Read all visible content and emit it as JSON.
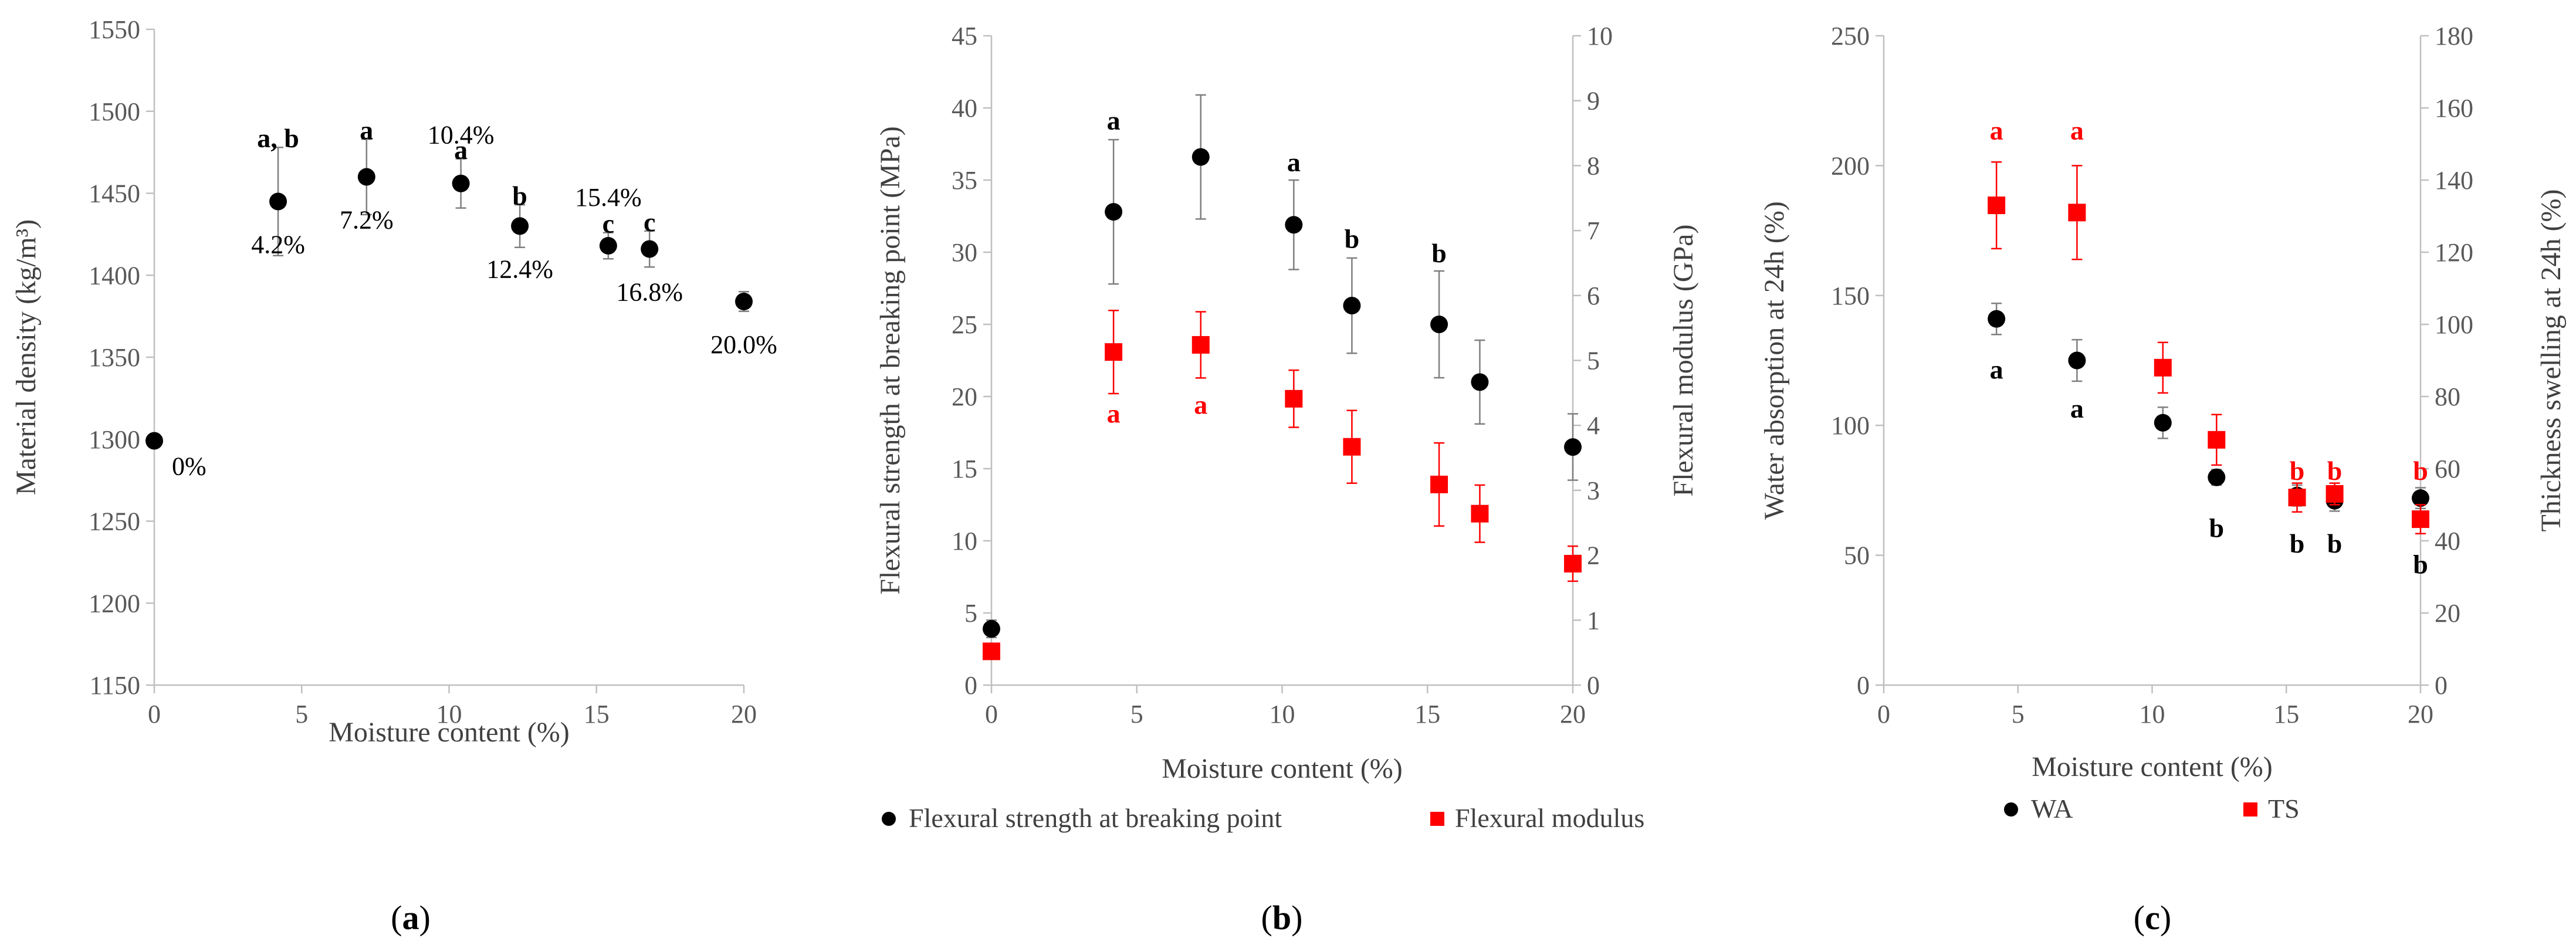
{
  "colors": {
    "black": "#000000",
    "red": "#ff0000",
    "axis": "#bfbfbf",
    "text": "#595959"
  },
  "chart_data": [
    {
      "type": "scatter",
      "panel": "(a)",
      "panel_parts": [
        "(",
        "a",
        ")"
      ],
      "xlabel": "Moisture content (%)",
      "ylabel": "Material density (kg/m³)",
      "xlim": [
        0,
        20
      ],
      "ylim": [
        1150,
        1550
      ],
      "xticks": [
        0,
        5,
        10,
        15,
        20
      ],
      "yticks": [
        1150,
        1200,
        1250,
        1300,
        1350,
        1400,
        1450,
        1500,
        1550
      ],
      "series": [
        {
          "name": "Material density",
          "color": "#000000",
          "marker": "circle",
          "points": [
            {
              "x": 0,
              "y": 1299,
              "err": 0
            },
            {
              "x": 4.2,
              "y": 1445,
              "err": 33
            },
            {
              "x": 7.2,
              "y": 1460,
              "err": 23
            },
            {
              "x": 10.4,
              "y": 1456,
              "err": 15
            },
            {
              "x": 12.4,
              "y": 1430,
              "err": 13
            },
            {
              "x": 15.4,
              "y": 1418,
              "err": 8
            },
            {
              "x": 16.8,
              "y": 1416,
              "err": 11
            },
            {
              "x": 20.0,
              "y": 1384,
              "err": 6
            }
          ]
        }
      ],
      "annotations": [
        {
          "text": "0%",
          "x": 0,
          "y": 1299,
          "pos": "lower-right"
        },
        {
          "text": "4.2%",
          "x": 4.2,
          "y": 1445,
          "pos": "below"
        },
        {
          "text": "7.2%",
          "x": 7.2,
          "y": 1460,
          "pos": "below"
        },
        {
          "text": "10.4%",
          "x": 10.4,
          "y": 1456,
          "pos": "above"
        },
        {
          "text": "12.4%",
          "x": 12.4,
          "y": 1430,
          "pos": "below"
        },
        {
          "text": "15.4%",
          "x": 15.4,
          "y": 1418,
          "pos": "above"
        },
        {
          "text": "16.8%",
          "x": 16.8,
          "y": 1416,
          "pos": "below"
        },
        {
          "text": "20.0%",
          "x": 20.0,
          "y": 1384,
          "pos": "below"
        }
      ],
      "letters": [
        {
          "text": "a, b",
          "x": 4.2,
          "y": 1478,
          "color": "#000000"
        },
        {
          "text": "a",
          "x": 7.2,
          "y": 1483,
          "color": "#000000"
        },
        {
          "text": "a",
          "x": 10.4,
          "y": 1471,
          "color": "#000000"
        },
        {
          "text": "b",
          "x": 12.4,
          "y": 1443,
          "color": "#000000"
        },
        {
          "text": "c",
          "x": 15.4,
          "y": 1426,
          "color": "#000000"
        },
        {
          "text": "c",
          "x": 16.8,
          "y": 1427,
          "color": "#000000"
        }
      ]
    },
    {
      "type": "scatter",
      "panel": "(b)",
      "panel_parts": [
        "(",
        "b",
        ")"
      ],
      "xlabel": "Moisture content (%)",
      "ylabel": "Flexural strength at breaking point (MPa)",
      "y2label": "Flexural modulus (GPa)",
      "xlim": [
        0,
        20
      ],
      "ylim": [
        0,
        45
      ],
      "y2lim": [
        0,
        10
      ],
      "xticks": [
        0,
        5,
        10,
        15,
        20
      ],
      "yticks": [
        0,
        5,
        10,
        15,
        20,
        25,
        30,
        35,
        40,
        45
      ],
      "y2ticks": [
        0,
        1,
        2,
        3,
        4,
        5,
        6,
        7,
        8,
        9,
        10
      ],
      "series": [
        {
          "name": "Flexural strength at breaking point",
          "color": "#000000",
          "marker": "circle",
          "axis": "left",
          "points": [
            {
              "x": 0,
              "y": 3.9,
              "err": 0.6
            },
            {
              "x": 4.2,
              "y": 32.8,
              "err": 5.0
            },
            {
              "x": 7.2,
              "y": 36.6,
              "err": 4.3
            },
            {
              "x": 10.4,
              "y": 31.9,
              "err": 3.1
            },
            {
              "x": 12.4,
              "y": 26.3,
              "err": 3.3
            },
            {
              "x": 15.4,
              "y": 25.0,
              "err": 3.7
            },
            {
              "x": 16.8,
              "y": 21.0,
              "err": 2.9
            },
            {
              "x": 20.0,
              "y": 16.5,
              "err": 2.3
            }
          ]
        },
        {
          "name": "Flexural modulus",
          "color": "#ff0000",
          "marker": "square",
          "axis": "right",
          "points": [
            {
              "x": 0,
              "y": 0.52,
              "err": 0.1
            },
            {
              "x": 4.2,
              "y": 5.13,
              "err": 0.64
            },
            {
              "x": 7.2,
              "y": 5.24,
              "err": 0.51
            },
            {
              "x": 10.4,
              "y": 4.41,
              "err": 0.44
            },
            {
              "x": 12.4,
              "y": 3.67,
              "err": 0.56
            },
            {
              "x": 15.4,
              "y": 3.09,
              "err": 0.64
            },
            {
              "x": 16.8,
              "y": 2.64,
              "err": 0.44
            },
            {
              "x": 20.0,
              "y": 1.87,
              "err": 0.27
            }
          ]
        }
      ],
      "letters": [
        {
          "text": "a",
          "x": 4.2,
          "y": 38.5,
          "color": "#000000"
        },
        {
          "text": "a",
          "x": 10.4,
          "y": 35.6,
          "color": "#000000"
        },
        {
          "text": "b",
          "x": 12.4,
          "y": 30.3,
          "color": "#000000"
        },
        {
          "text": "b",
          "x": 15.4,
          "y": 29.3,
          "color": "#000000"
        },
        {
          "text": "a",
          "x": 4.2,
          "y": 18.2,
          "color": "#ff0000"
        },
        {
          "text": "a",
          "x": 7.2,
          "y": 18.8,
          "color": "#ff0000"
        }
      ],
      "legend": [
        {
          "label": "Flexural strength at breaking point",
          "marker": "circle",
          "color": "#000000"
        },
        {
          "label": "Flexural modulus",
          "marker": "square",
          "color": "#ff0000"
        }
      ]
    },
    {
      "type": "scatter",
      "panel": "(c)",
      "panel_parts": [
        "(",
        "c",
        ")"
      ],
      "xlabel": "Moisture content (%)",
      "ylabel": "Water absorption at 24h (%)",
      "y2label": "Thickness swelling at 24h (%)",
      "xlim": [
        0,
        20
      ],
      "ylim": [
        0,
        250
      ],
      "y2lim": [
        0,
        180
      ],
      "xticks": [
        0,
        5,
        10,
        15,
        20
      ],
      "yticks": [
        0,
        50,
        100,
        150,
        200,
        250
      ],
      "y2ticks": [
        0,
        20,
        40,
        60,
        80,
        100,
        120,
        140,
        160,
        180
      ],
      "series": [
        {
          "name": "WA",
          "color": "#000000",
          "marker": "circle",
          "axis": "left",
          "points": [
            {
              "x": 4.2,
              "y": 141,
              "err": 6
            },
            {
              "x": 7.2,
              "y": 125,
              "err": 8
            },
            {
              "x": 10.4,
              "y": 101,
              "err": 6
            },
            {
              "x": 12.4,
              "y": 80,
              "err": 3
            },
            {
              "x": 15.4,
              "y": 73,
              "err": 4
            },
            {
              "x": 16.8,
              "y": 71,
              "err": 4
            },
            {
              "x": 20.0,
              "y": 72,
              "err": 4
            }
          ]
        },
        {
          "name": "TS",
          "color": "#ff0000",
          "marker": "square",
          "axis": "right",
          "points": [
            {
              "x": 4.2,
              "y": 133,
              "err": 12
            },
            {
              "x": 7.2,
              "y": 131,
              "err": 13
            },
            {
              "x": 10.4,
              "y": 88,
              "err": 7
            },
            {
              "x": 12.4,
              "y": 68,
              "err": 7
            },
            {
              "x": 15.4,
              "y": 52,
              "err": 4
            },
            {
              "x": 16.8,
              "y": 53,
              "err": 3
            },
            {
              "x": 20.0,
              "y": 46,
              "err": 4
            }
          ]
        }
      ],
      "letters": [
        {
          "text": "a",
          "x": 4.2,
          "y": 210,
          "color": "#ff0000"
        },
        {
          "text": "a",
          "x": 7.2,
          "y": 210,
          "color": "#ff0000"
        },
        {
          "text": "b",
          "x": 15.4,
          "y": 79,
          "color": "#ff0000"
        },
        {
          "text": "b",
          "x": 16.8,
          "y": 79,
          "color": "#ff0000"
        },
        {
          "text": "b",
          "x": 20.0,
          "y": 79,
          "color": "#ff0000"
        },
        {
          "text": "a",
          "x": 4.2,
          "y": 118,
          "color": "#000000"
        },
        {
          "text": "a",
          "x": 7.2,
          "y": 103,
          "color": "#000000"
        },
        {
          "text": "b",
          "x": 12.4,
          "y": 57,
          "color": "#000000"
        },
        {
          "text": "b",
          "x": 15.4,
          "y": 51,
          "color": "#000000"
        },
        {
          "text": "b",
          "x": 16.8,
          "y": 51,
          "color": "#000000"
        },
        {
          "text": "b",
          "x": 20.0,
          "y": 43,
          "color": "#000000"
        }
      ],
      "legend": [
        {
          "label": "WA",
          "marker": "circle",
          "color": "#000000"
        },
        {
          "label": "TS",
          "marker": "square",
          "color": "#ff0000"
        }
      ]
    }
  ]
}
